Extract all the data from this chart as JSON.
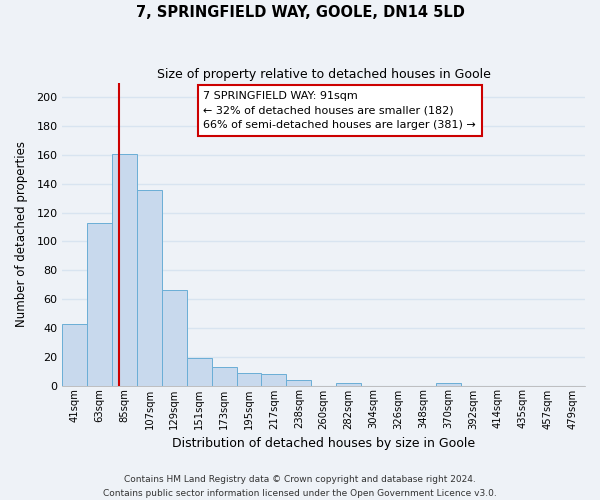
{
  "title": "7, SPRINGFIELD WAY, GOOLE, DN14 5LD",
  "subtitle": "Size of property relative to detached houses in Goole",
  "xlabel": "Distribution of detached houses by size in Goole",
  "ylabel": "Number of detached properties",
  "bin_labels": [
    "41sqm",
    "63sqm",
    "85sqm",
    "107sqm",
    "129sqm",
    "151sqm",
    "173sqm",
    "195sqm",
    "217sqm",
    "238sqm",
    "260sqm",
    "282sqm",
    "304sqm",
    "326sqm",
    "348sqm",
    "370sqm",
    "392sqm",
    "414sqm",
    "435sqm",
    "457sqm",
    "479sqm"
  ],
  "bar_heights": [
    43,
    113,
    161,
    136,
    66,
    19,
    13,
    9,
    8,
    4,
    0,
    2,
    0,
    0,
    0,
    2,
    0,
    0,
    0,
    0,
    0
  ],
  "bar_color": "#c8d9ed",
  "bar_edge_color": "#6aaed6",
  "annotation_text": "7 SPRINGFIELD WAY: 91sqm\n← 32% of detached houses are smaller (182)\n66% of semi-detached houses are larger (381) →",
  "annotation_box_color": "#ffffff",
  "annotation_box_edge_color": "#cc0000",
  "vline_color": "#cc0000",
  "ylim": [
    0,
    210
  ],
  "yticks": [
    0,
    20,
    40,
    60,
    80,
    100,
    120,
    140,
    160,
    180,
    200
  ],
  "footer_line1": "Contains HM Land Registry data © Crown copyright and database right 2024.",
  "footer_line2": "Contains public sector information licensed under the Open Government Licence v3.0.",
  "bg_color": "#eef2f7",
  "plot_bg_color": "#eef2f7",
  "grid_color": "#d8e4f0"
}
